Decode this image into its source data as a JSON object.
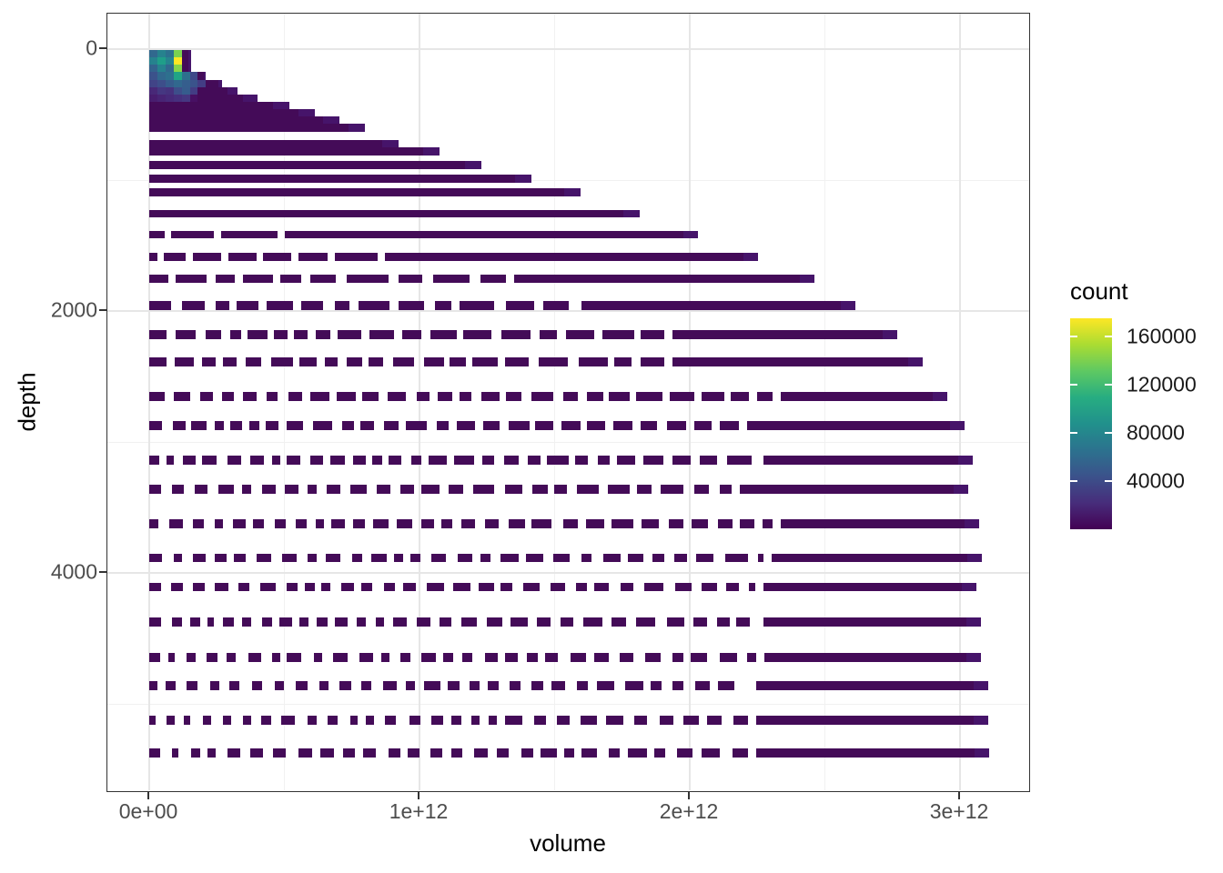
{
  "figure": {
    "background": "#ffffff",
    "panel_border_color": "#333333",
    "gridline_major_color": "#e6e6e6",
    "gridline_minor_color": "#f1f1f1"
  },
  "axes": {
    "x": {
      "title": "volume",
      "tick_labels": [
        "0e+00",
        "1e+12",
        "2e+12",
        "3e+12"
      ],
      "tick_values_e12": [
        0,
        1,
        2,
        3
      ],
      "minor_values_e12": [
        0.5,
        1.5,
        2.5
      ]
    },
    "y": {
      "title": "depth",
      "tick_labels": [
        "0",
        "2000",
        "4000"
      ],
      "tick_values": [
        0,
        2000,
        4000
      ],
      "minor_values": [
        1000,
        3000,
        5000
      ]
    }
  },
  "legend": {
    "title": "count",
    "entries": [
      {
        "label": "160000",
        "value": 160000
      },
      {
        "label": "120000",
        "value": 120000
      },
      {
        "label": "80000",
        "value": 80000
      },
      {
        "label": "40000",
        "value": 40000
      }
    ],
    "max_count": 175000,
    "palette_name": "viridis",
    "palette": [
      "#440154",
      "#472d7b",
      "#3b528b",
      "#2c728e",
      "#21918c",
      "#27ad81",
      "#5ec962",
      "#aadc32",
      "#fde725"
    ]
  },
  "chart_data": {
    "type": "heatmap",
    "subtype": "geom_bin2d",
    "xlabel": "volume",
    "ylabel": "depth (reversed, 0 at top)",
    "x_range_e12": [
      0,
      3.11
    ],
    "y_range_depth": [
      0,
      5500
    ],
    "bin_width_volume_e12": 0.03,
    "bin_height_depth": 58,
    "count_min": 1,
    "count_max": 175000,
    "body_color": "#440b58",
    "tip_color": "#46146a",
    "rows": [
      {
        "d": 7,
        "hm": 58,
        "end": 0.155,
        "cells": [
          "#31688e",
          "#26828e",
          "#2c718e",
          "#7ad151"
        ]
      },
      {
        "d": 64,
        "hm": 58,
        "end": 0.155,
        "cells": [
          "#26828e",
          "#1f9e89",
          "#25848e",
          "#fde725"
        ]
      },
      {
        "d": 120,
        "hm": 58,
        "end": 0.155,
        "cells": [
          "#33638d",
          "#26828e",
          "#31688e",
          "#86d549"
        ]
      },
      {
        "d": 177,
        "hm": 58,
        "end": 0.209,
        "cells": [
          "#3b528b",
          "#31688e",
          "#2d708e",
          "#20a486",
          "#2d708e",
          "#3f4889"
        ]
      },
      {
        "d": 233,
        "hm": 58,
        "end": 0.269,
        "cells": [
          "#414487",
          "#3d4e8a",
          "#365c8d",
          "#31688e",
          "#355e8d",
          "#3a538b",
          "#433d84"
        ]
      },
      {
        "d": 290,
        "hm": 58,
        "end": 0.327,
        "cells": [
          "#482878",
          "#453781",
          "#46327e",
          "#3d4e8a",
          "#365c8d",
          "#433d84"
        ]
      },
      {
        "d": 346,
        "hm": 58,
        "end": 0.401,
        "cells": [
          "#481d6f",
          "#482475",
          "#472a7a",
          "#46307e",
          "#453781",
          "#471063"
        ]
      },
      {
        "d": 403,
        "hm": 58,
        "end": 0.519
      },
      {
        "d": 459,
        "hm": 58,
        "end": 0.613
      },
      {
        "d": 516,
        "hm": 58,
        "end": 0.704
      },
      {
        "d": 572,
        "hm": 58,
        "end": 0.798
      },
      {
        "d": 694,
        "hm": 59,
        "end": 0.923
      },
      {
        "d": 753,
        "hm": 59,
        "end": 1.074
      },
      {
        "d": 854,
        "hm": 62,
        "end": 1.229
      },
      {
        "d": 958,
        "hm": 62,
        "end": 1.414
      },
      {
        "d": 1063,
        "hm": 62,
        "end": 1.596
      },
      {
        "d": 1229,
        "hm": 58,
        "end": 1.815
      },
      {
        "d": 1389,
        "hm": 58,
        "end": 2.03,
        "solid": 0.502,
        "dash_segs": [
          [
            0,
            0.057
          ],
          [
            0.081,
            0.239
          ],
          [
            0.266,
            0.475
          ]
        ]
      },
      {
        "d": 1556,
        "hm": 60,
        "end": 2.253,
        "solid": 0.872,
        "dash_segs": [
          [
            0,
            0.03
          ],
          [
            0.054,
            0.135
          ],
          [
            0.162,
            0.266
          ],
          [
            0.293,
            0.397
          ],
          [
            0.421,
            0.525
          ],
          [
            0.552,
            0.66
          ],
          [
            0.687,
            0.845
          ]
        ]
      },
      {
        "d": 1722,
        "hm": 62,
        "end": 2.461,
        "solid": 1.35,
        "dash": {
          "dl": 26,
          "dg": 10,
          "grow": 0.06,
          "seed": 3
        }
      },
      {
        "d": 1924,
        "hm": 69,
        "end": 2.613,
        "solid": 1.599,
        "dash": {
          "dl": 19,
          "dg": 10,
          "grow": 0.05,
          "seed": 5
        }
      },
      {
        "d": 2146,
        "hm": 69,
        "end": 2.768,
        "solid": 1.936,
        "dash": {
          "dl": 16,
          "dg": 9,
          "grow": 0.04,
          "seed": 7
        }
      },
      {
        "d": 2354,
        "hm": 69,
        "end": 2.862,
        "solid": 1.936,
        "dash": {
          "dl": 15,
          "dg": 9,
          "grow": 0.04,
          "seed": 11
        }
      },
      {
        "d": 2618,
        "hm": 72,
        "end": 2.953,
        "solid": 2.337,
        "dash": {
          "dl": 13,
          "dg": 9,
          "grow": 0.035,
          "seed": 13
        }
      },
      {
        "d": 2840,
        "hm": 69,
        "end": 3.017,
        "solid": 2.212,
        "dash": {
          "dl": 13,
          "dg": 9,
          "grow": 0.035,
          "seed": 17
        }
      },
      {
        "d": 3104,
        "hm": 69,
        "end": 3.047,
        "solid": 2.273,
        "dash": {
          "dl": 12,
          "dg": 9,
          "grow": 0.03,
          "seed": 19
        }
      },
      {
        "d": 3326,
        "hm": 69,
        "end": 3.03,
        "solid": 2.185,
        "dash": {
          "dl": 12,
          "dg": 10,
          "grow": 0.03,
          "seed": 23
        }
      },
      {
        "d": 3590,
        "hm": 69,
        "end": 3.071,
        "solid": 2.337,
        "dash": {
          "dl": 11,
          "dg": 10,
          "grow": 0.03,
          "seed": 29
        }
      },
      {
        "d": 3854,
        "hm": 65,
        "end": 3.081,
        "solid": 2.303,
        "dash": {
          "dl": 11,
          "dg": 10,
          "grow": 0.028,
          "seed": 31
        }
      },
      {
        "d": 4076,
        "hm": 65,
        "end": 3.061,
        "solid": 2.273,
        "dash": {
          "dl": 11,
          "dg": 10,
          "grow": 0.028,
          "seed": 37
        }
      },
      {
        "d": 4340,
        "hm": 69,
        "end": 3.077,
        "solid": 2.273,
        "dash": {
          "dl": 10,
          "dg": 10,
          "grow": 0.028,
          "seed": 41
        }
      },
      {
        "d": 4611,
        "hm": 69,
        "end": 3.077,
        "solid": 2.276,
        "dash": {
          "dl": 10,
          "dg": 11,
          "grow": 0.026,
          "seed": 43
        }
      },
      {
        "d": 4826,
        "hm": 69,
        "end": 3.104,
        "solid": 2.246,
        "dash": {
          "dl": 10,
          "dg": 11,
          "grow": 0.026,
          "seed": 47
        }
      },
      {
        "d": 5090,
        "hm": 69,
        "end": 3.104,
        "solid": 2.246,
        "dash": {
          "dl": 10,
          "dg": 11,
          "grow": 0.026,
          "seed": 53
        }
      },
      {
        "d": 5340,
        "hm": 69,
        "end": 3.108,
        "solid": 2.246,
        "dash": {
          "dl": 10,
          "dg": 11,
          "grow": 0.026,
          "seed": 59
        }
      }
    ]
  }
}
